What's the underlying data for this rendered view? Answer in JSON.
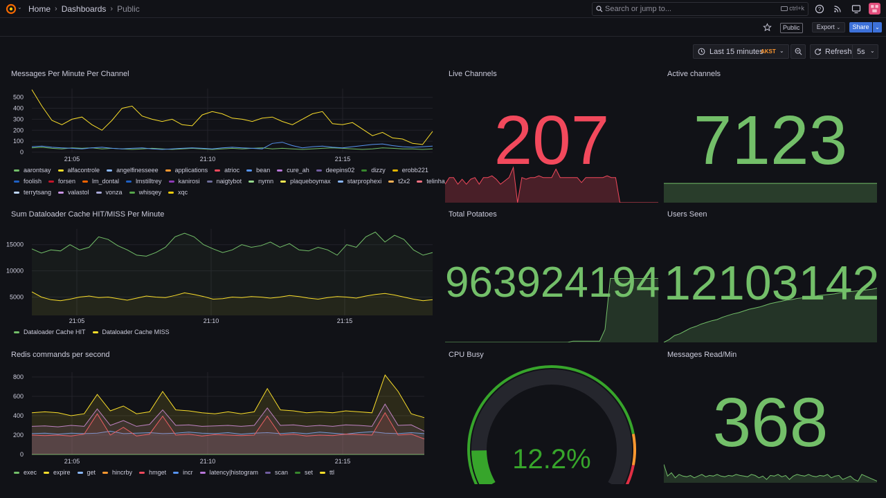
{
  "breadcrumb": {
    "home": "Home",
    "dashboards": "Dashboards",
    "current": "Public"
  },
  "search": {
    "placeholder": "Search or jump to...",
    "shortcut": "ctrl+k"
  },
  "toolbar": {
    "public_badge": "Public",
    "export_label": "Export",
    "share_label": "Share"
  },
  "time_controls": {
    "range_label": "Last 15 minutes",
    "timezone": "AKST",
    "refresh_label": "Refresh",
    "interval": "5s"
  },
  "colors": {
    "background": "#111217",
    "accent_blue": "#3d71d9",
    "green": "#73bf69",
    "red": "#f2495c",
    "orange": "#ff9830",
    "yellow": "#fade2a"
  },
  "panels": {
    "messages": {
      "title": "Messages Per Minute Per Channel",
      "legend": [
        {
          "name": "aarontsay",
          "color": "#73bf69"
        },
        {
          "name": "alfacontrole",
          "color": "#fade2a"
        },
        {
          "name": "angelfinesseee",
          "color": "#8ab8ff"
        },
        {
          "name": "applications",
          "color": "#ff9830"
        },
        {
          "name": "atrioc",
          "color": "#f2495c"
        },
        {
          "name": "bean",
          "color": "#5794f2"
        },
        {
          "name": "cure_ah",
          "color": "#b877d9"
        },
        {
          "name": "deepins02",
          "color": "#705da0"
        },
        {
          "name": "dizzy",
          "color": "#37872d"
        },
        {
          "name": "erobb221",
          "color": "#e0b400"
        },
        {
          "name": "foolish",
          "color": "#1f60c4"
        },
        {
          "name": "forsen",
          "color": "#c4162a"
        },
        {
          "name": "lm_dontal",
          "color": "#fa6400"
        },
        {
          "name": "lmstilltrey",
          "color": "#1f60c4"
        },
        {
          "name": "kanirosi",
          "color": "#8f3bb8"
        },
        {
          "name": "naigtybot",
          "color": "#6e6e9a"
        },
        {
          "name": "nymn",
          "color": "#96d98d"
        },
        {
          "name": "plaqueboymax",
          "color": "#ffee52"
        },
        {
          "name": "starprophexi",
          "color": "#8ab8ff"
        },
        {
          "name": "t2x2",
          "color": "#ffb357"
        },
        {
          "name": "telinha",
          "color": "#ff7383"
        },
        {
          "name": "terrytsang",
          "color": "#c0d8ff"
        },
        {
          "name": "valastol",
          "color": "#ca95e5"
        },
        {
          "name": "vonza",
          "color": "#a9a9d9"
        },
        {
          "name": "whisqey",
          "color": "#56a64b"
        },
        {
          "name": "xqc",
          "color": "#f2cc0c"
        }
      ]
    },
    "cache": {
      "title": "Sum Dataloader Cache HIT/MISS Per Minute",
      "legend": [
        {
          "name": "Dataloader Cache HIT",
          "color": "#73bf69"
        },
        {
          "name": "Dataloader Cache MISS",
          "color": "#fade2a"
        }
      ]
    },
    "redis": {
      "title": "Redis commands per second",
      "legend": [
        {
          "name": "exec",
          "color": "#73bf69"
        },
        {
          "name": "expire",
          "color": "#fade2a"
        },
        {
          "name": "get",
          "color": "#8ab8ff"
        },
        {
          "name": "hincrby",
          "color": "#ff9830"
        },
        {
          "name": "hmget",
          "color": "#f2495c"
        },
        {
          "name": "incr",
          "color": "#5794f2"
        },
        {
          "name": "latency|histogram",
          "color": "#b877d9"
        },
        {
          "name": "scan",
          "color": "#705da0"
        },
        {
          "name": "set",
          "color": "#37872d"
        },
        {
          "name": "ttl",
          "color": "#fade2a"
        }
      ]
    },
    "live_channels": {
      "title": "Live Channels",
      "value": "207",
      "color": "#f2495c"
    },
    "active_channels": {
      "title": "Active channels",
      "value": "7123",
      "color": "#73bf69"
    },
    "total_potatoes": {
      "title": "Total Potatoes",
      "value": "963924194",
      "color": "#73bf69"
    },
    "users_seen": {
      "title": "Users Seen",
      "value": "12103142",
      "color": "#73bf69"
    },
    "cpu_busy": {
      "title": "CPU Busy",
      "value": "12.2%",
      "fraction": 0.122,
      "color": "#37a52b"
    },
    "messages_read": {
      "title": "Messages Read/Min",
      "value": "368",
      "color": "#73bf69"
    }
  },
  "chart_data": [
    {
      "type": "line",
      "title": "Messages Per Minute Per Channel",
      "x_ticks": [
        "21:05",
        "21:10",
        "21:15"
      ],
      "y_ticks": [
        0,
        100,
        200,
        300,
        400,
        500
      ],
      "ylim": [
        0,
        580
      ],
      "series": [
        {
          "name": "alfacontrole",
          "values": [
            570,
            420,
            290,
            250,
            300,
            320,
            250,
            200,
            290,
            400,
            420,
            330,
            300,
            280,
            300,
            250,
            240,
            340,
            370,
            350,
            310,
            300,
            280,
            310,
            320,
            280,
            250,
            300,
            350,
            370,
            260,
            250,
            270,
            210,
            150,
            180,
            130,
            120,
            80,
            70,
            190
          ]
        },
        {
          "name": "aarontsay",
          "values": [
            40,
            45,
            35,
            30,
            40,
            35,
            40,
            30,
            35,
            30,
            25,
            30,
            35,
            30,
            25,
            30,
            35,
            30,
            25,
            30,
            35,
            30,
            35,
            40,
            30,
            35,
            30,
            25,
            30,
            35,
            40,
            35,
            30,
            25,
            30,
            40,
            35,
            30,
            30,
            25,
            30
          ]
        },
        {
          "name": "bean",
          "values": [
            50,
            55,
            45,
            40,
            35,
            30,
            40,
            45,
            35,
            30,
            35,
            40,
            30,
            25,
            30,
            35,
            40,
            35,
            30,
            40,
            45,
            40,
            35,
            30,
            80,
            90,
            60,
            40,
            50,
            55,
            45,
            40,
            50,
            60,
            70,
            75,
            60,
            50,
            45,
            50,
            55
          ]
        }
      ]
    },
    {
      "type": "line",
      "title": "Sum Dataloader Cache HIT/MISS Per Minute",
      "x_ticks": [
        "21:05",
        "21:10",
        "21:15"
      ],
      "y_ticks": [
        5000,
        10000,
        15000
      ],
      "ylim": [
        1500,
        18000
      ],
      "series": [
        {
          "name": "Dataloader Cache HIT",
          "values": [
            14200,
            13400,
            14000,
            13800,
            15000,
            14000,
            14500,
            16500,
            16000,
            14800,
            14000,
            13000,
            12800,
            13500,
            14500,
            16500,
            17200,
            16500,
            15000,
            14200,
            13500,
            14000,
            15000,
            14500,
            14800,
            15500,
            14500,
            15200,
            14000,
            13800,
            14500,
            14000,
            13000,
            15000,
            14500,
            16500,
            17400,
            15500,
            16800,
            16000,
            14000,
            13000,
            13500
          ]
        },
        {
          "name": "Dataloader Cache MISS",
          "values": [
            6000,
            5000,
            4500,
            4300,
            4600,
            5000,
            5200,
            4900,
            5000,
            4700,
            4400,
            4800,
            5200,
            5000,
            4900,
            5300,
            5800,
            5500,
            5100,
            4600,
            4700,
            5000,
            4900,
            5100,
            5000,
            4800,
            5000,
            5300,
            5100,
            4800,
            4600,
            4900,
            5100,
            5000,
            4800,
            5200,
            5500,
            5700,
            5400,
            5000,
            4600,
            4300,
            4500
          ]
        }
      ]
    },
    {
      "type": "area",
      "title": "Redis commands per second",
      "x_ticks": [
        "21:05",
        "21:10",
        "21:15"
      ],
      "y_ticks": [
        0,
        200,
        400,
        600,
        800
      ],
      "ylim": [
        0,
        850
      ],
      "series": [
        {
          "name": "exec",
          "values": [
            0,
            0,
            0,
            0,
            0,
            0,
            0,
            0,
            0,
            0,
            0,
            0,
            0,
            0,
            0,
            0,
            0,
            0,
            0,
            0,
            0,
            0,
            0,
            0,
            0,
            0,
            0,
            0,
            0,
            0,
            0
          ]
        },
        {
          "name": "incr",
          "values": [
            215,
            220,
            210,
            220,
            215,
            220,
            240,
            215,
            220,
            225,
            215,
            220,
            230,
            220,
            215,
            225,
            210,
            220,
            225,
            215,
            225,
            215,
            230,
            220,
            210,
            225,
            235,
            220,
            215,
            225,
            215
          ]
        },
        {
          "name": "hmget",
          "values": [
            200,
            195,
            200,
            190,
            210,
            420,
            200,
            280,
            190,
            210,
            395,
            200,
            210,
            190,
            205,
            200,
            195,
            200,
            395,
            200,
            210,
            190,
            200,
            195,
            210,
            205,
            200,
            430,
            200,
            210,
            160
          ]
        },
        {
          "name": "latency|histogram",
          "values": [
            290,
            295,
            285,
            300,
            290,
            470,
            300,
            350,
            290,
            310,
            460,
            300,
            305,
            290,
            295,
            300,
            290,
            300,
            480,
            300,
            305,
            290,
            300,
            290,
            305,
            300,
            290,
            520,
            300,
            305,
            240
          ]
        },
        {
          "name": "ttl",
          "values": [
            430,
            440,
            430,
            400,
            420,
            620,
            450,
            500,
            420,
            440,
            650,
            460,
            450,
            430,
            420,
            440,
            420,
            440,
            680,
            460,
            450,
            430,
            440,
            430,
            450,
            440,
            430,
            820,
            650,
            420,
            380
          ]
        }
      ]
    },
    {
      "type": "area",
      "title": "Live Channels",
      "ylim": [
        0,
        260
      ],
      "series": [
        {
          "name": "",
          "values": [
            110,
            150,
            150,
            110,
            140,
            110,
            140,
            150,
            110,
            150,
            150,
            160,
            140,
            110,
            130,
            150,
            210,
            0,
            150,
            140,
            150,
            150,
            160,
            150,
            150,
            150,
            200,
            150,
            150,
            150,
            150,
            150,
            120,
            150,
            150,
            150,
            150,
            150,
            160,
            150,
            150,
            0,
            0,
            0,
            0,
            0,
            0,
            0,
            0,
            0,
            0
          ]
        }
      ]
    },
    {
      "type": "area",
      "title": "Total Potatoes",
      "ylim": [
        0,
        120
      ],
      "series": [
        {
          "name": "",
          "values": [
            0,
            0,
            0,
            0,
            0,
            0,
            0,
            0,
            0,
            0,
            0,
            0,
            0,
            0,
            0,
            0,
            0,
            0,
            0,
            0,
            0,
            0,
            0,
            0,
            2,
            2,
            2,
            2,
            2,
            2,
            20,
            100,
            100,
            100,
            100,
            100,
            100,
            100,
            100,
            100,
            100
          ]
        }
      ]
    },
    {
      "type": "area",
      "title": "Users Seen",
      "ylim": [
        0,
        120
      ],
      "series": [
        {
          "name": "",
          "values": [
            0,
            5,
            12,
            15,
            20,
            25,
            28,
            32,
            35,
            38,
            40,
            44,
            47,
            50,
            52,
            55,
            58,
            60,
            62,
            65,
            68,
            70,
            72,
            74,
            75,
            77,
            78,
            80,
            80,
            82,
            83,
            84,
            85,
            87,
            88,
            89,
            90,
            91,
            92,
            93,
            95
          ]
        }
      ]
    },
    {
      "type": "area",
      "title": "Messages Read/Min",
      "ylim": [
        0,
        120
      ],
      "series": [
        {
          "name": "",
          "values": [
            55,
            20,
            30,
            15,
            25,
            20,
            18,
            22,
            15,
            20,
            25,
            18,
            22,
            20,
            25,
            20,
            18,
            22,
            20,
            25,
            22,
            20,
            18,
            25,
            22,
            15,
            20,
            10,
            22,
            20,
            25,
            18,
            22,
            10,
            20,
            25,
            22,
            20,
            25,
            20,
            18,
            22,
            20,
            25,
            15,
            20,
            22,
            10,
            15,
            20,
            10,
            5,
            25,
            20,
            15,
            10,
            5
          ]
        }
      ]
    },
    {
      "type": "area",
      "title": "Active channels",
      "ylim": [
        0,
        100
      ],
      "series": [
        {
          "name": "",
          "values": [
            90,
            90,
            90,
            90,
            90,
            90,
            90,
            90,
            90,
            90
          ]
        }
      ]
    }
  ]
}
